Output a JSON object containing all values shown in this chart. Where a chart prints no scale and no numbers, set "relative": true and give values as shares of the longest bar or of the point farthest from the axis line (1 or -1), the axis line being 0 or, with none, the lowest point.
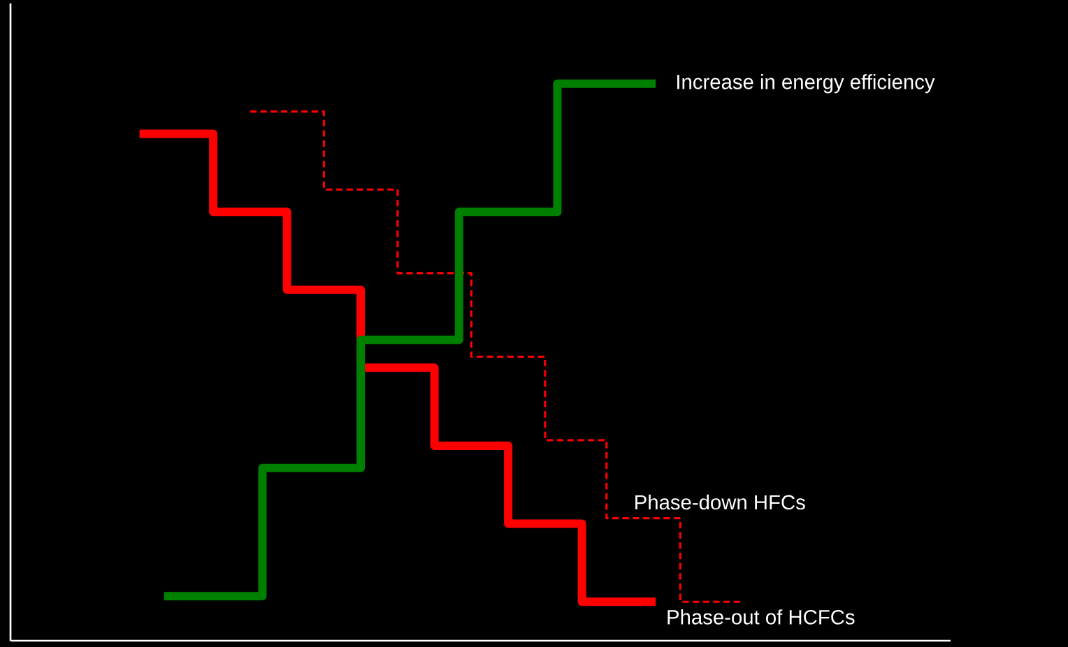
{
  "chart_data": {
    "type": "step",
    "relative": true,
    "marker": "none",
    "categories": [
      null,
      null,
      null,
      null,
      null,
      null,
      null,
      null,
      null,
      null,
      null,
      null,
      null,
      null,
      null,
      null,
      null,
      null,
      null,
      null,
      null,
      null,
      null,
      null,
      null,
      null,
      null,
      null,
      null,
      null,
      null,
      null,
      null,
      null,
      null,
      null,
      null,
      null,
      null,
      null,
      null,
      null,
      null,
      null,
      null,
      null,
      null,
      null,
      null,
      null
    ],
    "series": [
      {
        "name": "Phase-out of HCFCs",
        "color": "#ff0000",
        "line_style": "solid",
        "values": [
          0.91,
          0.91,
          0.91,
          0.91,
          0.91,
          0.91,
          0.77,
          0.77,
          0.77,
          0.77,
          0.77,
          0.77,
          0.63,
          0.63,
          0.63,
          0.63,
          0.63,
          0.63,
          0.49,
          0.49,
          0.49,
          0.49,
          0.49,
          0.49,
          0.35,
          0.35,
          0.35,
          0.35,
          0.35,
          0.35,
          0.21,
          0.21,
          0.21,
          0.21,
          0.21,
          0.21,
          0.07,
          0.07,
          0.07,
          0.07,
          0.07,
          0.07,
          0.07,
          null,
          null,
          null,
          null,
          null,
          null,
          null
        ]
      },
      {
        "name": "Phase-down HFCs",
        "color": "#ff0000",
        "line_style": "dashed",
        "values": [
          null,
          null,
          null,
          null,
          null,
          null,
          null,
          null,
          null,
          0.95,
          0.95,
          0.95,
          0.95,
          0.95,
          0.95,
          0.81,
          0.81,
          0.81,
          0.81,
          0.81,
          0.81,
          0.66,
          0.66,
          0.66,
          0.66,
          0.66,
          0.66,
          0.51,
          0.51,
          0.51,
          0.51,
          0.51,
          0.51,
          0.36,
          0.36,
          0.36,
          0.36,
          0.36,
          0.22,
          0.22,
          0.22,
          0.22,
          0.22,
          0.22,
          0.07,
          0.07,
          0.07,
          0.07,
          0.07,
          0.07
        ]
      },
      {
        "name": "Increase in energy efficiency",
        "color": "#008000",
        "line_style": "solid",
        "values": [
          null,
          null,
          0.08,
          0.08,
          0.08,
          0.08,
          0.08,
          0.08,
          0.08,
          0.08,
          0.31,
          0.31,
          0.31,
          0.31,
          0.31,
          0.31,
          0.31,
          0.31,
          0.54,
          0.54,
          0.54,
          0.54,
          0.54,
          0.54,
          0.54,
          0.54,
          0.77,
          0.77,
          0.77,
          0.77,
          0.77,
          0.77,
          0.77,
          0.77,
          1.0,
          1.0,
          1.0,
          1.0,
          1.0,
          1.0,
          1.0,
          1.0,
          1.0,
          null,
          null,
          null,
          null,
          null,
          null,
          null
        ]
      }
    ]
  }
}
